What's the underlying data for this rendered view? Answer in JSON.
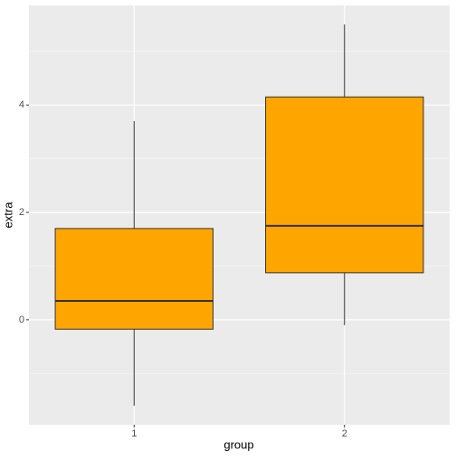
{
  "chart_data": {
    "type": "box",
    "xlabel": "group",
    "ylabel": "extra",
    "categories": [
      "1",
      "2"
    ],
    "boxes": [
      {
        "min": -1.6,
        "q1": -0.175,
        "median": 0.35,
        "q3": 1.7,
        "max": 3.7
      },
      {
        "min": -0.1,
        "q1": 0.875,
        "median": 1.75,
        "q3": 4.15,
        "max": 5.5
      }
    ],
    "color": "#FFA500",
    "ylim": [
      -1.955,
      5.855
    ],
    "yticks": [
      0,
      2,
      4
    ],
    "yminor": [
      -1,
      1,
      3,
      5
    ],
    "grid": true
  }
}
